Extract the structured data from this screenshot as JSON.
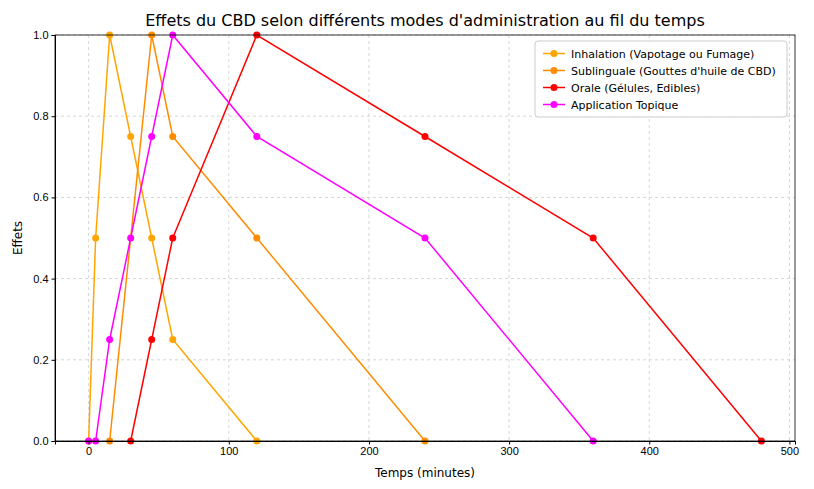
{
  "chart_data": {
    "type": "line",
    "title": "Effets du CBD selon différents modes d'administration au fil du temps",
    "x_label": "Temps (minutes)",
    "y_label": "Effets",
    "xlim": [
      -24,
      504
    ],
    "xticks": [
      0,
      100,
      200,
      300,
      400,
      500
    ],
    "ylim": [
      0,
      1
    ],
    "yticks": [
      {
        "value": 0,
        "label": "0.0"
      },
      {
        "value": 0.2,
        "label": "0.2"
      },
      {
        "value": 0.4,
        "label": "0.4"
      },
      {
        "value": 0.6,
        "label": "0.6"
      },
      {
        "value": 0.8,
        "label": "0.8"
      },
      {
        "value": 1,
        "label": "1.0"
      }
    ],
    "grid": true,
    "legend": "upper right",
    "marker": "circle",
    "series": [
      {
        "name": "Inhalation (Vapotage ou Fumage)",
        "color": "#ffa500",
        "x": [
          0,
          5,
          15,
          30,
          45,
          60,
          120
        ],
        "values": [
          0,
          0.5,
          1.0,
          0.75,
          0.5,
          0.25,
          0
        ]
      },
      {
        "name": "Sublinguale (Gouttes d'huile de CBD)",
        "color": "#ff8c00",
        "x": [
          15,
          45,
          60,
          120,
          240
        ],
        "values": [
          0,
          1.0,
          0.75,
          0.5,
          0
        ]
      },
      {
        "name": "Orale (Gélules, Edibles)",
        "color": "#ff0000",
        "x": [
          30,
          45,
          60,
          120,
          240,
          360,
          480
        ],
        "values": [
          0,
          0.25,
          0.5,
          1.0,
          0.75,
          0.5,
          0
        ]
      },
      {
        "name": "Application Topique",
        "color": "#ff00ff",
        "x": [
          0,
          5,
          15,
          30,
          45,
          60,
          120,
          240,
          360
        ],
        "values": [
          0,
          0,
          0.25,
          0.5,
          0.75,
          1.0,
          0.75,
          0.5,
          0
        ]
      }
    ]
  }
}
